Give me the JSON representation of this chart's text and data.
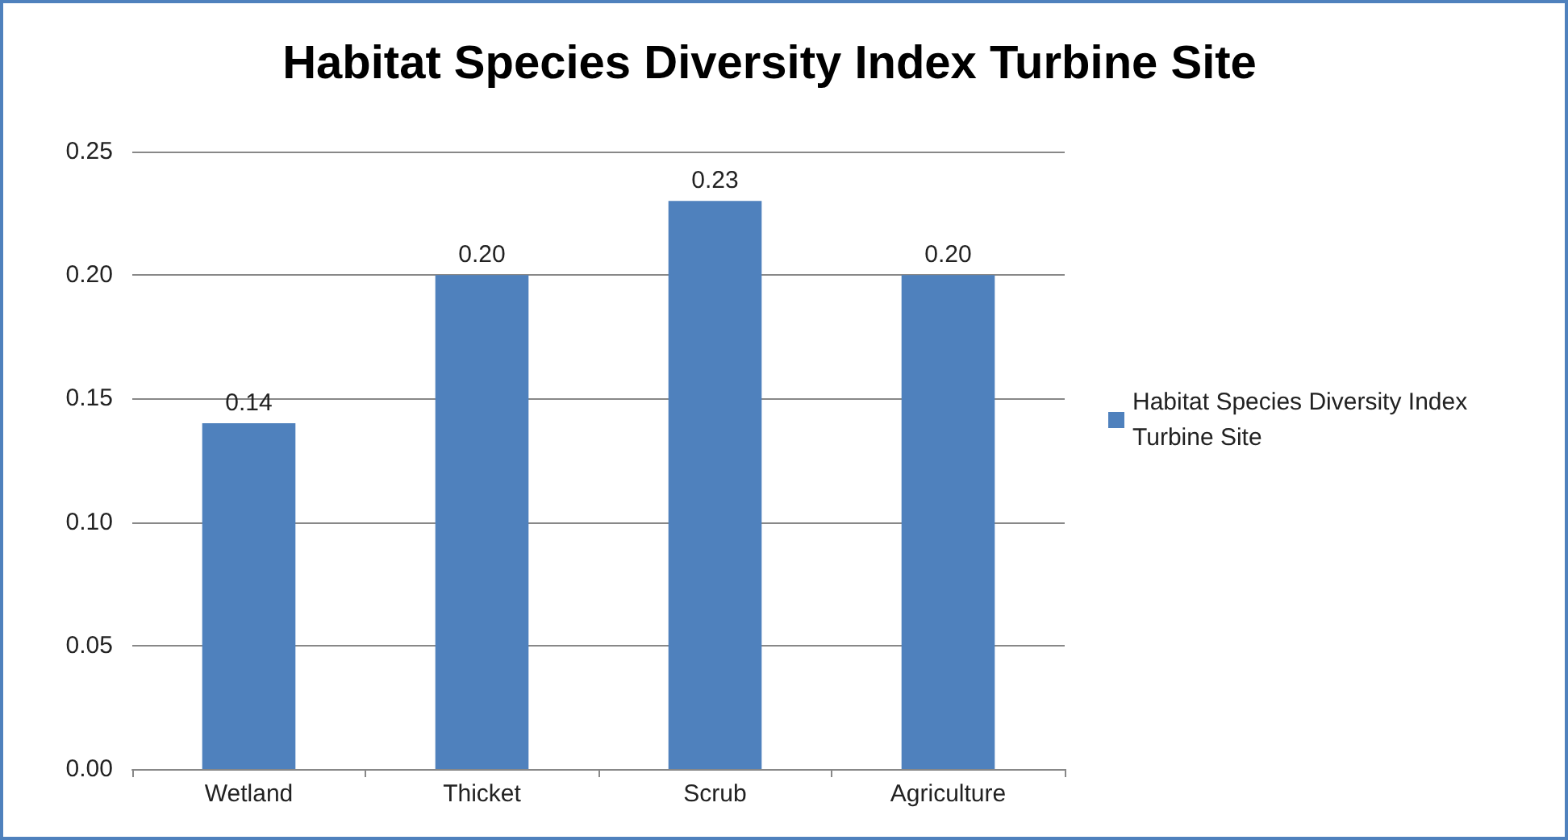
{
  "chart_data": {
    "type": "bar",
    "title": "Habitat Species Diversity Index Turbine Site",
    "categories": [
      "Wetland",
      "Thicket",
      "Scrub",
      "Agriculture"
    ],
    "series": [
      {
        "name": "Habitat Species Diversity Index Turbine Site",
        "color": "#4f81bd",
        "values": [
          0.14,
          0.2,
          0.23,
          0.2
        ],
        "value_labels": [
          "0.14",
          "0.20",
          "0.23",
          "0.20"
        ]
      }
    ],
    "ylim": [
      0,
      0.25
    ],
    "yticks": [
      {
        "value": 0,
        "label": "0.00"
      },
      {
        "value": 0.05,
        "label": "0.05"
      },
      {
        "value": 0.1,
        "label": "0.10"
      },
      {
        "value": 0.15,
        "label": "0.15"
      },
      {
        "value": 0.2,
        "label": "0.20"
      },
      {
        "value": 0.25,
        "label": "0.25"
      }
    ],
    "grid": "y",
    "legend": "right"
  }
}
